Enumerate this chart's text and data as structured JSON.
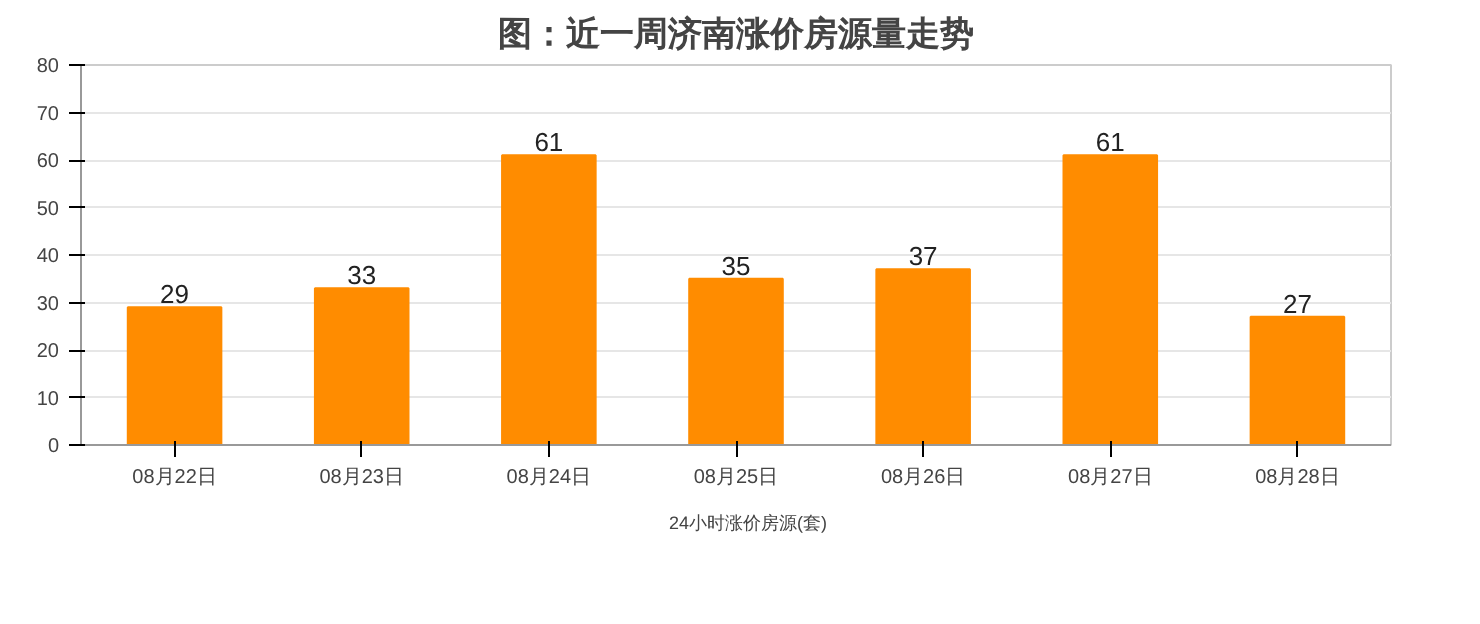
{
  "chart_data": {
    "type": "bar",
    "title": "图：近一周济南涨价房源量走势",
    "categories": [
      "08月22日",
      "08月23日",
      "08月24日",
      "08月25日",
      "08月26日",
      "08月27日",
      "08月28日"
    ],
    "series": [
      {
        "name": "24小时涨价房源(套)",
        "color": "#ff8c00",
        "values": [
          29,
          33,
          61,
          35,
          37,
          61,
          27
        ]
      }
    ],
    "ylim": [
      0,
      80
    ],
    "yticks": [
      0,
      10,
      20,
      30,
      40,
      50,
      60,
      70,
      80
    ],
    "grid": "y",
    "legend": "bottom",
    "data_labels": true
  }
}
